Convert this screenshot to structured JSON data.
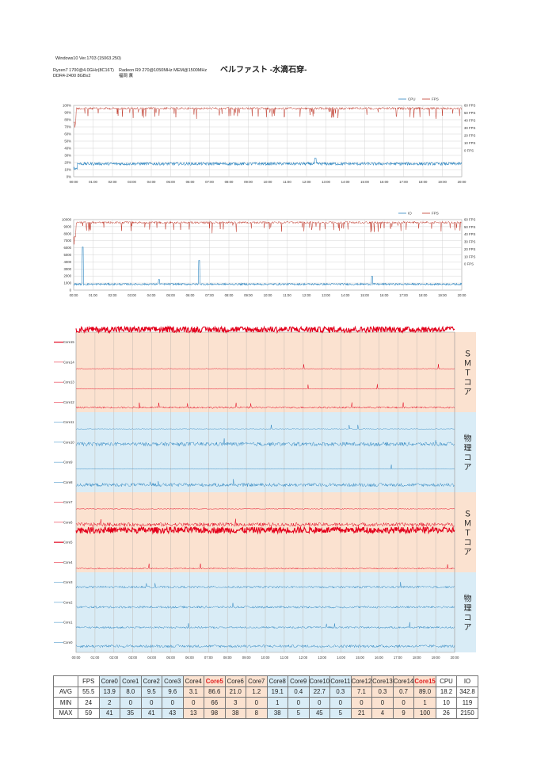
{
  "header": {
    "os": "Windows10  Ver.1703 (15063.250)",
    "cpu": "Ryzen7 1700@4.0GHz(8C16T)",
    "gpu": "Radeon R9 270@1050MHz MEM@1500MHz",
    "ram": "DDR4-2400 8GBx2",
    "location": "福岡      薫",
    "title": "ベルファスト -水滴石穿-"
  },
  "colors": {
    "blue": "#2e86c1",
    "red": "#c0392b",
    "core_red": "#e3001b",
    "bg_orange": "#fbe2d0",
    "bg_blue": "#d9ecf6"
  },
  "chart_data": [
    {
      "type": "line",
      "name": "cpu-fps",
      "x_ticks": [
        "00:00",
        "01:00",
        "02:00",
        "03:00",
        "04:00",
        "05:00",
        "06:00",
        "07:00",
        "08:00",
        "09:00",
        "10:00",
        "11:00",
        "12:00",
        "13:00",
        "14:00",
        "15:00",
        "16:00",
        "17:00",
        "18:00",
        "19:00",
        "20:00"
      ],
      "y_ticks": [
        "0%",
        "10%",
        "20%",
        "30%",
        "40%",
        "50%",
        "60%",
        "70%",
        "80%",
        "90%",
        "100%"
      ],
      "y2_ticks": [
        "0 FPS",
        "10 FPS",
        "20 FPS",
        "30 FPS",
        "40 FPS",
        "50 FPS",
        "60 FPS"
      ],
      "ylim": [
        0,
        100
      ],
      "y2lim": [
        -35,
        60
      ],
      "legend": [
        "CPU",
        "FPS"
      ],
      "series": [
        {
          "name": "CPU",
          "avg": 18.2,
          "min": 10,
          "max": 26
        },
        {
          "name": "FPS",
          "avg": 55.5,
          "min": 24,
          "max": 59
        }
      ]
    },
    {
      "type": "line",
      "name": "io-fps",
      "x_ticks": [
        "00:00",
        "01:00",
        "02:00",
        "03:00",
        "04:00",
        "05:00",
        "06:00",
        "07:00",
        "08:00",
        "09:00",
        "10:00",
        "11:00",
        "12:00",
        "13:00",
        "14:00",
        "15:00",
        "16:00",
        "17:00",
        "18:00",
        "19:00",
        "20:00"
      ],
      "y_ticks": [
        "0",
        "1000",
        "2000",
        "3000",
        "4000",
        "5000",
        "6000",
        "7000",
        "8000",
        "9000",
        "10000"
      ],
      "y2_ticks": [
        "0 FPS",
        "10 FPS",
        "20 FPS",
        "30 FPS",
        "40 FPS",
        "50 FPS",
        "60 FPS"
      ],
      "ylim": [
        0,
        10000
      ],
      "y2lim": [
        -35,
        60
      ],
      "legend": [
        "IO",
        "FPS"
      ],
      "series": [
        {
          "name": "IO",
          "avg": 342.8,
          "min": 119,
          "max": 2150
        },
        {
          "name": "FPS",
          "avg": 55.5,
          "min": 24,
          "max": 59
        }
      ]
    },
    {
      "type": "line",
      "name": "core-usage",
      "x_ticks": [
        "00:00",
        "01:00",
        "02:00",
        "03:00",
        "04:00",
        "05:00",
        "06:00",
        "07:00",
        "08:00",
        "09:00",
        "10:00",
        "11:00",
        "12:00",
        "13:00",
        "14:00",
        "15:00",
        "16:00",
        "17:00",
        "18:00",
        "19:00",
        "20:00"
      ],
      "core_labels": [
        "Core15",
        "Core14",
        "Core13",
        "Core12",
        "Core11",
        "Core10",
        "Core9",
        "Core8",
        "Core7",
        "Core6",
        "Core5",
        "Core4",
        "Core3",
        "Core2",
        "Core1",
        "Core0"
      ],
      "groups": [
        {
          "label": "ＳＭＴコア",
          "kind": "smt"
        },
        {
          "label": "物理コア",
          "kind": "phys"
        },
        {
          "label": "ＳＭＴコア",
          "kind": "smt"
        },
        {
          "label": "物理コア",
          "kind": "phys"
        }
      ],
      "core_avg": {
        "Core15": 89.0,
        "Core14": 0.7,
        "Core13": 0.3,
        "Core12": 7.1,
        "Core11": 0.3,
        "Core10": 22.7,
        "Core9": 0.4,
        "Core8": 19.1,
        "Core7": 1.2,
        "Core6": 21.0,
        "Core5": 86.6,
        "Core4": 3.1,
        "Core3": 9.6,
        "Core2": 9.5,
        "Core1": 8.0,
        "Core0": 13.9
      }
    }
  ],
  "stats_table": {
    "headers": [
      "",
      "FPS",
      "Core0",
      "Core1",
      "Core2",
      "Core3",
      "Core4",
      "Core5",
      "Core6",
      "Core7",
      "Core8",
      "Core9",
      "Core10",
      "Core11",
      "Core12",
      "Core13",
      "Core14",
      "Core15",
      "CPU",
      "IO"
    ],
    "rows": [
      [
        "AVG",
        "55.5",
        "13.9",
        "8.0",
        "9.5",
        "9.6",
        "3.1",
        "86.6",
        "21.0",
        "1.2",
        "19.1",
        "0.4",
        "22.7",
        "0.3",
        "7.1",
        "0.3",
        "0.7",
        "89.0",
        "18.2",
        "342.8"
      ],
      [
        "MIN",
        "24",
        "2",
        "0",
        "0",
        "0",
        "0",
        "66",
        "3",
        "0",
        "1",
        "0",
        "0",
        "0",
        "0",
        "0",
        "0",
        "1",
        "10",
        "119"
      ],
      [
        "MAX",
        "59",
        "41",
        "35",
        "41",
        "43",
        "13",
        "98",
        "38",
        "8",
        "38",
        "5",
        "45",
        "5",
        "21",
        "4",
        "9",
        "100",
        "26",
        "2150"
      ]
    ]
  }
}
